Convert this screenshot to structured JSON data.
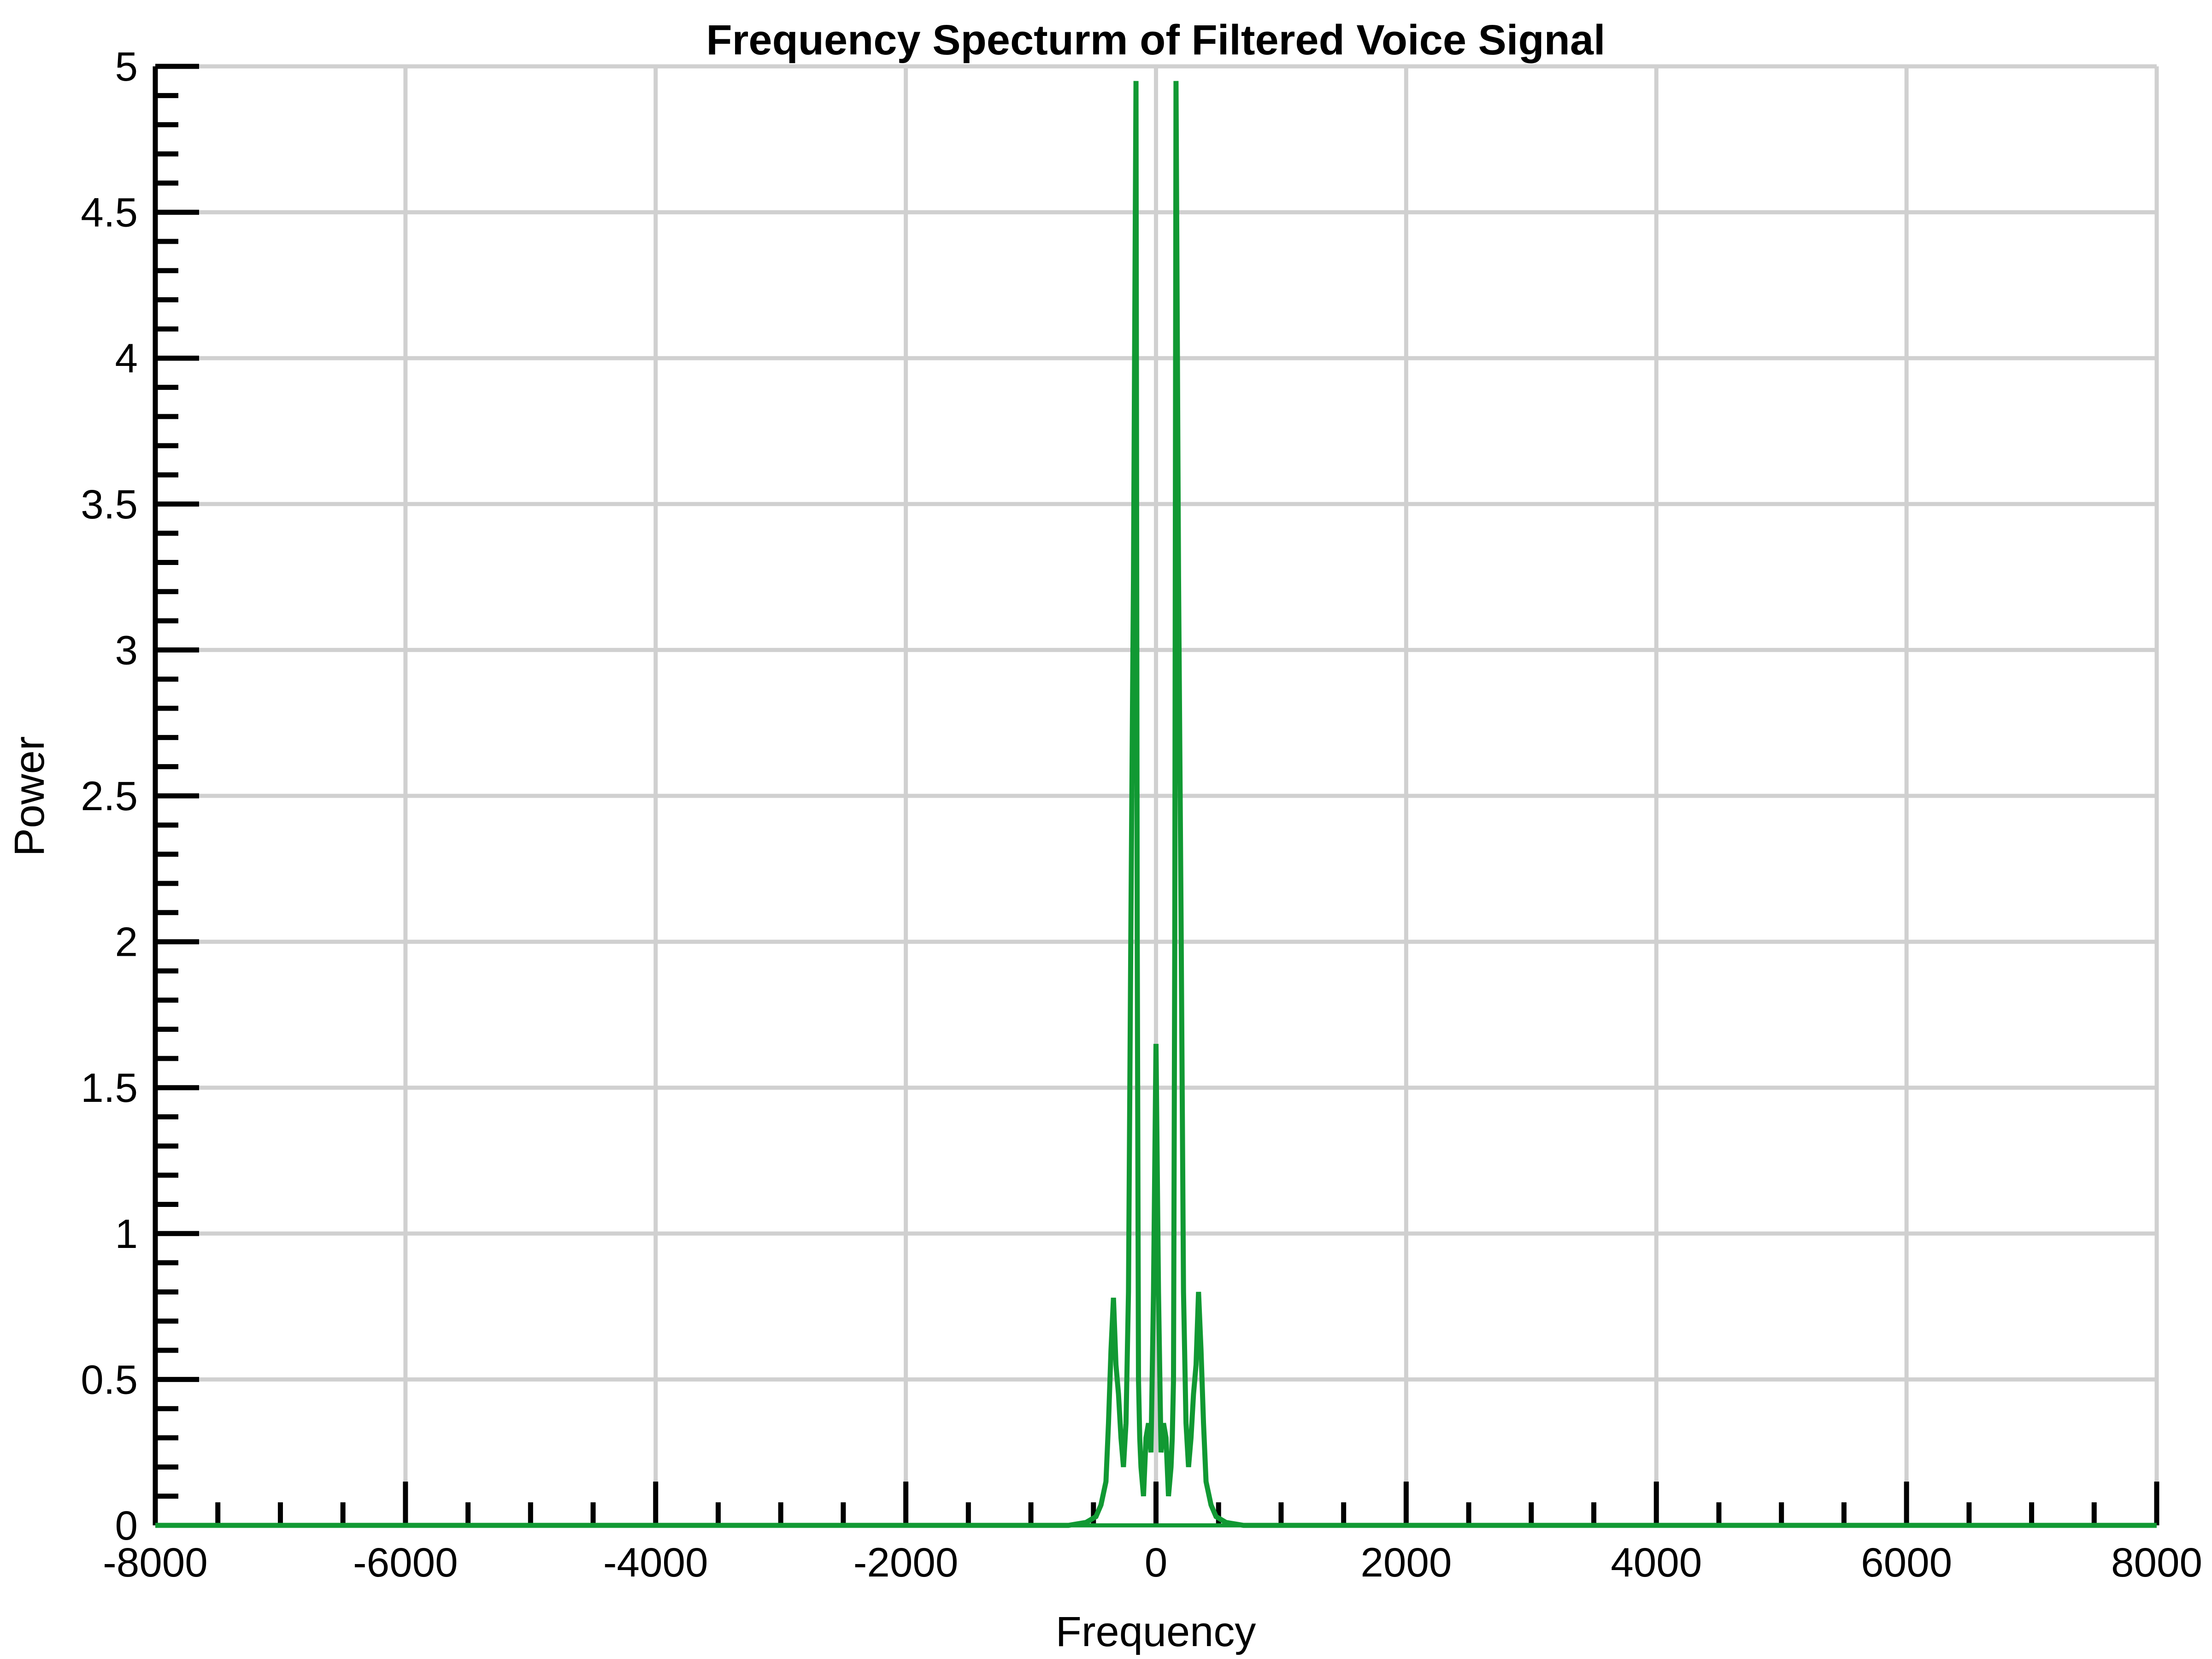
{
  "chart_data": {
    "type": "line",
    "title": "Frequency Specturm of Filtered Voice Signal",
    "xlabel": "Frequency",
    "ylabel": "Power",
    "xlim": [
      -8000,
      8000
    ],
    "ylim": [
      0,
      5
    ],
    "xticks": [
      -8000,
      -6000,
      -4000,
      -2000,
      0,
      2000,
      4000,
      6000,
      8000
    ],
    "yticks": [
      0,
      0.5,
      1,
      1.5,
      2,
      2.5,
      3,
      3.5,
      4,
      4.5,
      5
    ],
    "xtick_labels": [
      "-8000",
      "-6000",
      "-4000",
      "-2000",
      "0",
      "2000",
      "4000",
      "6000",
      "8000"
    ],
    "ytick_labels": [
      "0",
      "0.5",
      "1",
      "1.5",
      "2",
      "2.5",
      "3",
      "3.5",
      "4",
      "4.5",
      "5"
    ],
    "grid": true,
    "series": [
      {
        "color": "#119933",
        "x": [
          -8000,
          -700,
          -560,
          -480,
          -440,
          -400,
          -380,
          -360,
          -340,
          -320,
          -300,
          -280,
          -260,
          -240,
          -220,
          -200,
          -180,
          -160,
          -150,
          -140,
          -130,
          -120,
          -100,
          -80,
          -60,
          -40,
          -20,
          0,
          20,
          40,
          60,
          80,
          100,
          120,
          130,
          140,
          150,
          160,
          180,
          200,
          220,
          240,
          260,
          280,
          300,
          320,
          340,
          360,
          380,
          400,
          440,
          480,
          560,
          700,
          8000
        ],
        "y": [
          0,
          0,
          0.01,
          0.03,
          0.07,
          0.15,
          0.35,
          0.6,
          0.78,
          0.55,
          0.45,
          0.3,
          0.2,
          0.35,
          0.8,
          2.1,
          3.25,
          4.95,
          2.0,
          0.5,
          0.3,
          0.2,
          0.1,
          0.3,
          0.35,
          0.25,
          0.8,
          1.65,
          0.8,
          0.25,
          0.35,
          0.3,
          0.1,
          0.2,
          0.3,
          0.5,
          2.0,
          4.95,
          3.25,
          2.1,
          0.8,
          0.35,
          0.2,
          0.3,
          0.45,
          0.55,
          0.8,
          0.6,
          0.35,
          0.15,
          0.07,
          0.03,
          0.01,
          0,
          0
        ]
      }
    ]
  }
}
